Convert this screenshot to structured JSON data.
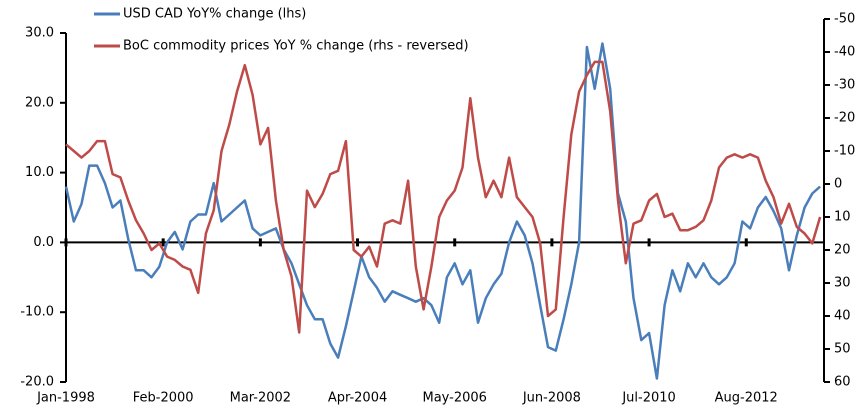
{
  "chart_data": {
    "type": "line",
    "x": [
      0,
      2,
      4,
      6,
      8,
      10,
      12,
      14,
      16,
      18,
      20,
      22,
      24,
      26,
      28,
      30,
      32,
      34,
      36,
      38,
      40,
      42,
      44,
      46,
      48,
      50,
      52,
      54,
      56,
      58,
      60,
      62,
      64,
      66,
      68,
      70,
      72,
      74,
      76,
      78,
      80,
      82,
      84,
      86,
      88,
      90,
      92,
      94,
      96,
      98,
      100,
      102,
      104,
      106,
      108,
      110,
      112,
      114,
      116,
      118,
      120,
      122,
      124,
      126,
      128,
      130,
      132,
      134,
      136,
      138,
      140,
      142,
      144,
      146,
      148,
      150,
      152,
      154,
      156,
      158,
      160,
      162,
      164,
      166,
      168,
      170,
      172,
      174,
      176,
      178,
      180,
      182,
      184,
      186,
      188,
      190,
      192,
      194
    ],
    "xlim": [
      0,
      195
    ],
    "xticks": [
      {
        "value": 0,
        "label": "Jan-1998"
      },
      {
        "value": 25,
        "label": "Feb-2000"
      },
      {
        "value": 50,
        "label": "Mar-2002"
      },
      {
        "value": 75,
        "label": "Apr-2004"
      },
      {
        "value": 100,
        "label": "May-2006"
      },
      {
        "value": 125,
        "label": "Jun-2008"
      },
      {
        "value": 150,
        "label": "Jul-2010"
      },
      {
        "value": 175,
        "label": "Aug-2012"
      }
    ],
    "ylim": [
      -20,
      30
    ],
    "yticks": [
      {
        "value": -20,
        "label": "-20.0"
      },
      {
        "value": -10,
        "label": "-10.0"
      },
      {
        "value": 0,
        "label": "0.0"
      },
      {
        "value": 10,
        "label": "10.0"
      },
      {
        "value": 20,
        "label": "20.0"
      },
      {
        "value": 30,
        "label": "30.0"
      }
    ],
    "y2lim": [
      60,
      -50
    ],
    "y2ticks": [
      -50,
      -40,
      -30,
      -20,
      -10,
      0,
      10,
      20,
      30,
      40,
      50,
      60
    ],
    "legend": "upper left",
    "series": [
      {
        "name": "USD CAD YoY% change (lhs)",
        "color": "#4a7ebb",
        "values": [
          8,
          3,
          5.5,
          11,
          11,
          8.5,
          5,
          6,
          0.5,
          -4,
          -4,
          -5,
          -3.5,
          0,
          1.5,
          -1,
          3,
          4,
          4,
          8.5,
          3,
          4,
          5,
          6,
          2,
          1,
          1.5,
          2,
          -1,
          -3,
          -6,
          -9,
          -11,
          -11,
          -14.5,
          -16.5,
          -12,
          -7,
          -2,
          -5,
          -6.5,
          -8.5,
          -7,
          -7.5,
          -8,
          -8.5,
          -8,
          -9,
          -11.5,
          -5,
          -3,
          -6,
          -4,
          -11.5,
          -8,
          -6,
          -4.5,
          0,
          3,
          1,
          -3,
          -9,
          -15,
          -15.5,
          -11,
          -6,
          0,
          28,
          22,
          28.5,
          22,
          7,
          3,
          -8,
          -14,
          -13,
          -19.5,
          -9,
          -4,
          -7,
          -3,
          -5,
          -3,
          -5,
          -6,
          -5,
          -3,
          3,
          2,
          5,
          6.5,
          4.5,
          2,
          -4,
          1,
          5,
          7,
          8
        ]
      },
      {
        "name": "BoC commodity prices YoY % change (rhs - reversed)",
        "color": "#be4b48",
        "axis": "y2",
        "values": [
          -12,
          -10,
          -8,
          -10,
          -13,
          -13,
          -3,
          -2,
          5,
          11,
          15,
          20,
          18,
          22,
          23,
          25,
          26,
          33,
          15,
          8,
          -10,
          -18,
          -28,
          -36,
          -27,
          -12,
          -17,
          5,
          20,
          28,
          45,
          2,
          7,
          3,
          -3,
          -4,
          -13,
          20,
          22,
          19,
          25,
          12,
          11,
          12,
          -1,
          25,
          38,
          25,
          10,
          5,
          2,
          -5,
          -26,
          -8,
          4,
          -1,
          4,
          -8,
          4,
          7,
          10,
          18,
          40,
          38,
          10,
          -15,
          -28,
          -33,
          -37,
          -37,
          -22,
          5,
          24,
          12,
          11,
          5,
          3,
          10,
          9,
          14,
          14,
          13,
          11,
          5,
          -5,
          -8,
          -9,
          -8,
          -9,
          -8,
          -1,
          4,
          12,
          6,
          13,
          15,
          18,
          10
        ]
      }
    ]
  }
}
